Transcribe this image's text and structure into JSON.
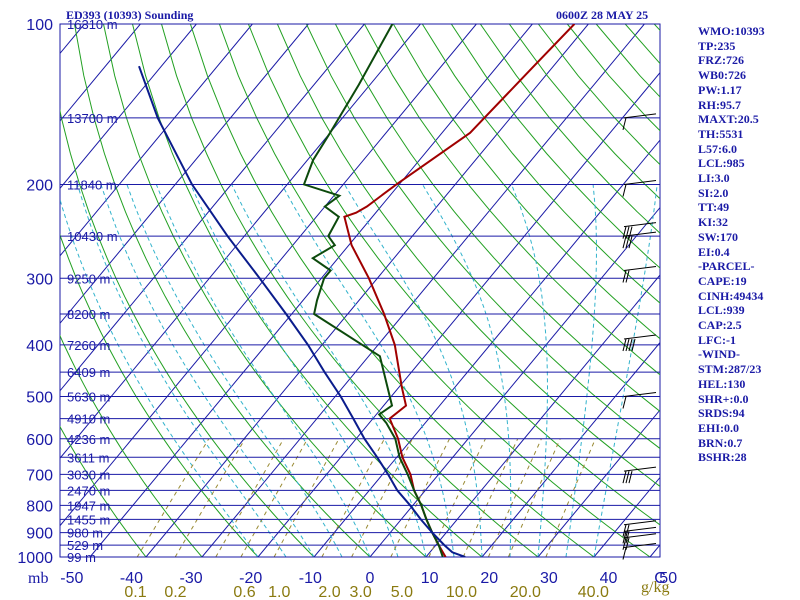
{
  "header": {
    "title": "ED393 (10393) Sounding",
    "time": "0600Z 28 MAY 25"
  },
  "indices": [
    "WMO:10393",
    "TP:235",
    "FRZ:726",
    "WB0:726",
    "PW:1.17",
    "RH:95.7",
    "MAXT:20.5",
    "TH:5531",
    "L57:6.0",
    "LCL:985",
    "LI:3.0",
    "SI:2.0",
    "TT:49",
    "KI:32",
    "SW:170",
    "EI:0.4",
    "-PARCEL-",
    "CAPE:19",
    "CINH:49434",
    "LCL:939",
    "CAP:2.5",
    "LFC:-1",
    "-WIND-",
    "STM:287/23",
    "HEL:130",
    "SHR+:0.0",
    "SRDS:94",
    "EHI:0.0",
    "BRN:0.7",
    "BSHR:28"
  ],
  "units": {
    "temperature": "C",
    "mixing_ratio": "g/kg",
    "pressure": "mb"
  },
  "chart_data": {
    "type": "line",
    "chart_kind": "Skew-T log-P diagram",
    "y_axis": {
      "quantity": "pressure",
      "unit": "mb",
      "scale": "log",
      "range": [
        1000,
        100
      ],
      "ticks": [
        100,
        200,
        300,
        400,
        500,
        600,
        700,
        800,
        900,
        1000
      ]
    },
    "x_axis": {
      "quantity": "temperature",
      "unit": "C",
      "skewed": true,
      "ticks": [
        -50,
        -40,
        -30,
        -20,
        -10,
        0,
        10,
        20,
        30,
        40,
        50
      ]
    },
    "mixing_ratio_labels": [
      "0.1",
      "0.2",
      "0.6",
      "1.0",
      "2.0",
      "3.0",
      "5.0",
      "10.0",
      "20.0",
      "40.0"
    ],
    "height_levels": [
      {
        "p": 100,
        "label": "16310 m"
      },
      {
        "p": 150,
        "label": "13700 m"
      },
      {
        "p": 200,
        "label": "11840 m"
      },
      {
        "p": 250,
        "label": "10430 m"
      },
      {
        "p": 300,
        "label": "9250 m"
      },
      {
        "p": 350,
        "label": "8200 m"
      },
      {
        "p": 400,
        "label": "7260 m"
      },
      {
        "p": 450,
        "label": "6409 m"
      },
      {
        "p": 500,
        "label": "5630 m"
      },
      {
        "p": 550,
        "label": "4910 m"
      },
      {
        "p": 600,
        "label": "4236 m"
      },
      {
        "p": 650,
        "label": "3611 m"
      },
      {
        "p": 700,
        "label": "3030 m"
      },
      {
        "p": 750,
        "label": "2470 m"
      },
      {
        "p": 800,
        "label": "1947 m"
      },
      {
        "p": 850,
        "label": "1455 m"
      },
      {
        "p": 900,
        "label": "980 m"
      },
      {
        "p": 950,
        "label": "529 m"
      },
      {
        "p": 1000,
        "label": "99 m"
      }
    ],
    "series": [
      {
        "color": "#a00000",
        "points": [
          {
            "p": 1000,
            "t": 13.5
          },
          {
            "p": 950,
            "t": 10.5
          },
          {
            "p": 900,
            "t": 7.5
          },
          {
            "p": 850,
            "t": 4.5
          },
          {
            "p": 800,
            "t": 1.5
          },
          {
            "p": 750,
            "t": -2
          },
          {
            "p": 700,
            "t": -5
          },
          {
            "p": 650,
            "t": -9
          },
          {
            "p": 600,
            "t": -12.5
          },
          {
            "p": 550,
            "t": -17
          },
          {
            "p": 520,
            "t": -16
          },
          {
            "p": 480,
            "t": -19.5
          },
          {
            "p": 400,
            "t": -27
          },
          {
            "p": 350,
            "t": -33.5
          },
          {
            "p": 300,
            "t": -41.5
          },
          {
            "p": 260,
            "t": -49.5
          },
          {
            "p": 230,
            "t": -55
          },
          {
            "p": 226,
            "t": -53.5
          },
          {
            "p": 220,
            "t": -52.5
          },
          {
            "p": 200,
            "t": -50.5
          },
          {
            "p": 160,
            "t": -45
          },
          {
            "p": 120,
            "t": -43.5
          },
          {
            "p": 100,
            "t": -42.5
          }
        ]
      },
      {
        "color": "#0c4a0c",
        "points": [
          {
            "p": 1000,
            "t": 13
          },
          {
            "p": 950,
            "t": 10.5
          },
          {
            "p": 900,
            "t": 7.5
          },
          {
            "p": 850,
            "t": 4.5
          },
          {
            "p": 800,
            "t": 1.5
          },
          {
            "p": 750,
            "t": -2
          },
          {
            "p": 700,
            "t": -5.5
          },
          {
            "p": 650,
            "t": -9.5
          },
          {
            "p": 600,
            "t": -13
          },
          {
            "p": 560,
            "t": -17
          },
          {
            "p": 540,
            "t": -19.5
          },
          {
            "p": 520,
            "t": -18.5
          },
          {
            "p": 420,
            "t": -28
          },
          {
            "p": 350,
            "t": -46
          },
          {
            "p": 330,
            "t": -47.5
          },
          {
            "p": 300,
            "t": -49.5
          },
          {
            "p": 290,
            "t": -49.5
          },
          {
            "p": 275,
            "t": -54.5
          },
          {
            "p": 260,
            "t": -52.5
          },
          {
            "p": 250,
            "t": -55
          },
          {
            "p": 230,
            "t": -56
          },
          {
            "p": 220,
            "t": -60
          },
          {
            "p": 210,
            "t": -59
          },
          {
            "p": 200,
            "t": -67
          },
          {
            "p": 180,
            "t": -69
          },
          {
            "p": 160,
            "t": -70
          },
          {
            "p": 130,
            "t": -72
          },
          {
            "p": 100,
            "t": -75
          }
        ]
      },
      {
        "color": "#0a1c8c",
        "points": [
          {
            "p": 1000,
            "t": 17
          },
          {
            "p": 980,
            "t": 14
          },
          {
            "p": 950,
            "t": 11.5
          },
          {
            "p": 900,
            "t": 7.5
          },
          {
            "p": 850,
            "t": 3.5
          },
          {
            "p": 800,
            "t": -0.5
          },
          {
            "p": 750,
            "t": -5
          },
          {
            "p": 700,
            "t": -9
          },
          {
            "p": 650,
            "t": -13.5
          },
          {
            "p": 600,
            "t": -18.5
          },
          {
            "p": 550,
            "t": -23.5
          },
          {
            "p": 500,
            "t": -29
          },
          {
            "p": 450,
            "t": -35.5
          },
          {
            "p": 400,
            "t": -42.5
          },
          {
            "p": 350,
            "t": -51
          },
          {
            "p": 300,
            "t": -61
          },
          {
            "p": 250,
            "t": -73
          },
          {
            "p": 200,
            "t": -87
          },
          {
            "p": 150,
            "t": -103
          },
          {
            "p": 120,
            "t": -114
          }
        ]
      }
    ],
    "wind_barbs": [
      {
        "p": 150,
        "flags": 1
      },
      {
        "p": 200,
        "flags": 1
      },
      {
        "p": 240,
        "flags": 3
      },
      {
        "p": 250,
        "flags": 3
      },
      {
        "p": 290,
        "flags": 2
      },
      {
        "p": 390,
        "flags": 4
      },
      {
        "p": 500,
        "flags": 1
      },
      {
        "p": 690,
        "flags": 3
      },
      {
        "p": 870,
        "flags": 2
      },
      {
        "p": 895,
        "flags": 2
      },
      {
        "p": 920,
        "flags": 2
      },
      {
        "p": 960,
        "flags": 1
      }
    ]
  }
}
